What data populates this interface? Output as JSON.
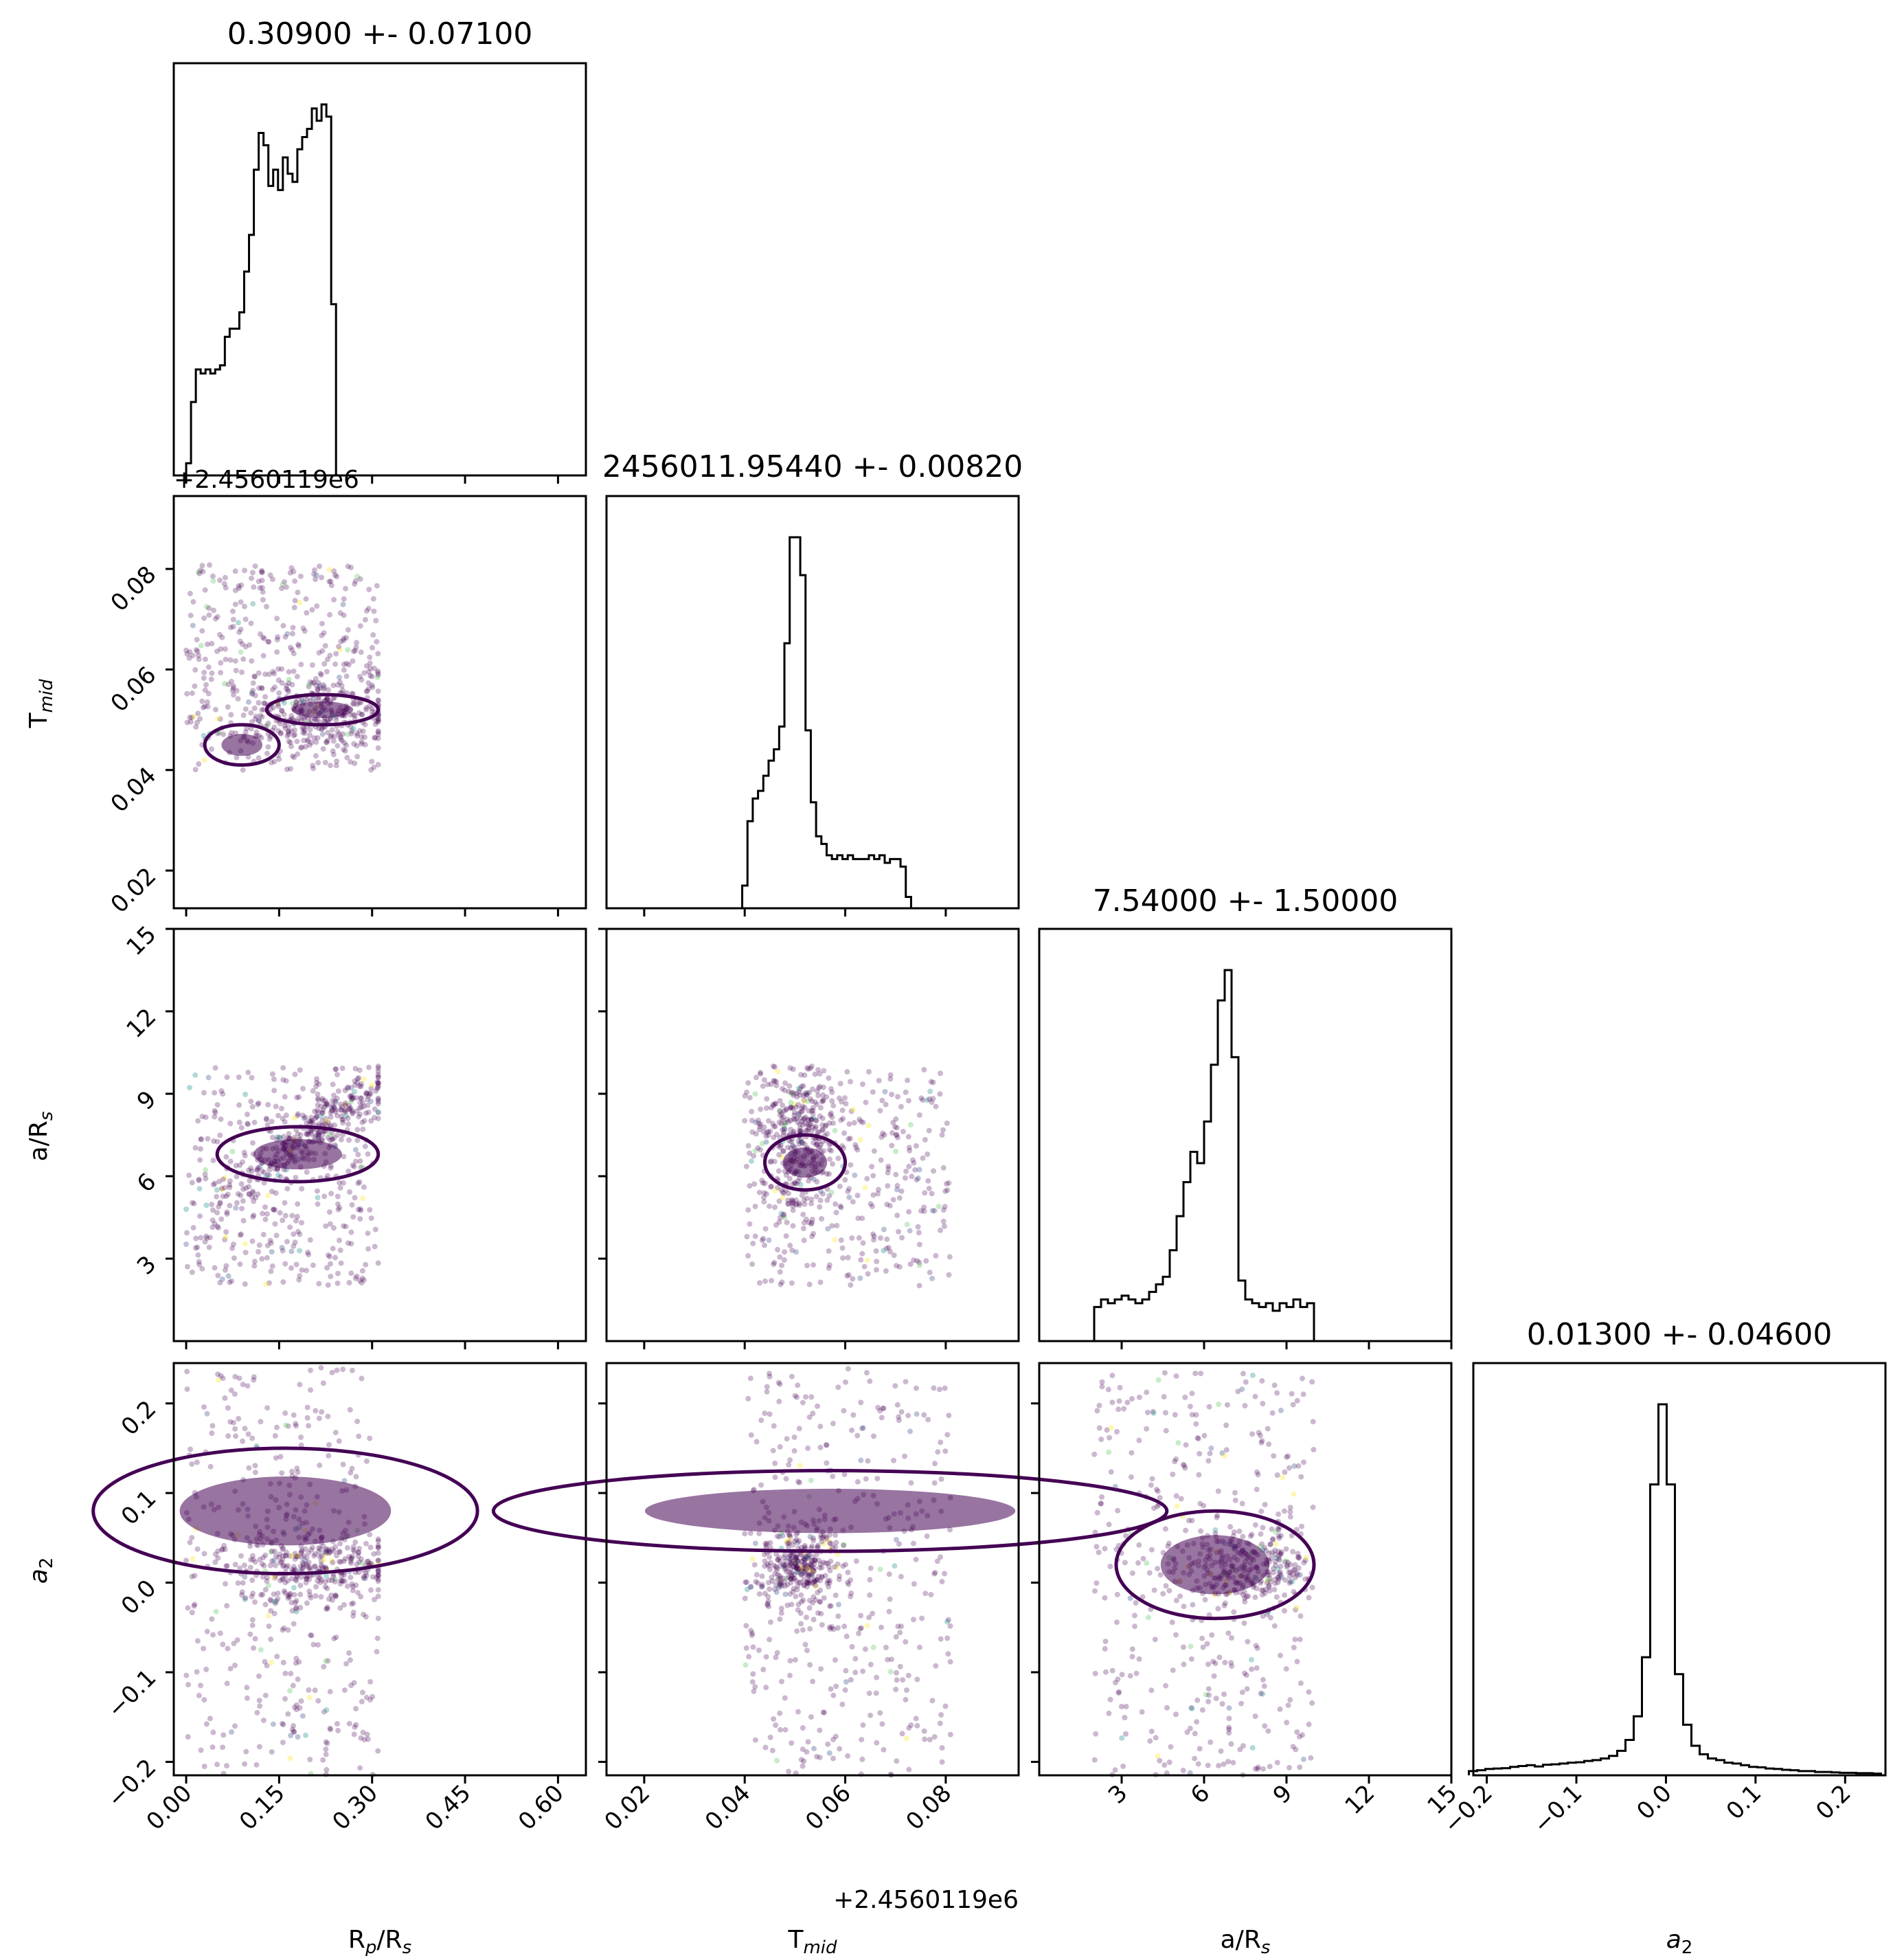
{
  "chart_data": {
    "type": "scatter",
    "parameters": [
      "R$_p$/R$_s$",
      "T$_{mid}$",
      "a/R$_s$",
      "$a_2$"
    ],
    "axis_labels": [
      {
        "base": "R",
        "sub": "p",
        "tail": "/R",
        "sub2": "s"
      },
      {
        "base": "T",
        "sub": "mid",
        "tail": "",
        "sub2": ""
      },
      {
        "base": "a/R",
        "sub": "s",
        "tail": "",
        "sub2": ""
      },
      {
        "base": "a",
        "sub": "2",
        "tail": "",
        "sub2": "",
        "italic": true
      }
    ],
    "titles": [
      "0.30900 +- 0.07100",
      "2456011.95440 +- 0.00820",
      "7.54000 +- 1.50000",
      "0.01300 +- 0.04600"
    ],
    "tmid_offset_label": "+2.4560119e6",
    "ranges": [
      [
        -0.02,
        0.645
      ],
      [
        0.0125,
        0.0945
      ],
      [
        0.0,
        15.0
      ],
      [
        -0.215,
        0.245
      ]
    ],
    "ticks": [
      [
        0.0,
        0.15,
        0.3,
        0.45,
        0.6
      ],
      [
        0.02,
        0.04,
        0.06,
        0.08
      ],
      [
        3,
        6,
        9,
        12,
        15
      ],
      [
        -0.2,
        -0.1,
        0.0,
        0.1,
        0.2
      ]
    ],
    "tick_labels": [
      [
        "0.00",
        "0.15",
        "0.30",
        "0.45",
        "0.60"
      ],
      [
        "0.02",
        "0.04",
        "0.06",
        "0.08"
      ],
      [
        "3",
        "6",
        "9",
        "12",
        "15"
      ],
      [
        "−0.2",
        "−0.1",
        "0.0",
        "0.1",
        "0.2"
      ]
    ],
    "prior_bounds": [
      [
        0.0,
        0.31
      ],
      [
        0.04,
        0.081
      ],
      [
        2.0,
        10.0
      ],
      [
        -0.22,
        0.24
      ]
    ],
    "histograms": [
      {
        "param": "R$_p$/R$_s$",
        "edges_start": 0.0,
        "bin_width": 0.0078,
        "values": [
          0.03,
          0.18,
          0.26,
          0.25,
          0.26,
          0.25,
          0.26,
          0.27,
          0.34,
          0.36,
          0.36,
          0.4,
          0.5,
          0.59,
          0.75,
          0.84,
          0.81,
          0.71,
          0.75,
          0.7,
          0.78,
          0.74,
          0.72,
          0.8,
          0.83,
          0.85,
          0.9,
          0.87,
          0.91,
          0.88,
          0.42,
          0.0
        ]
      },
      {
        "param": "T$_{mid}$",
        "edges_start": 0.0395,
        "bin_width": 0.00105,
        "values": [
          0.06,
          0.23,
          0.29,
          0.31,
          0.35,
          0.39,
          0.42,
          0.48,
          0.7,
          0.98,
          0.98,
          0.88,
          0.47,
          0.28,
          0.19,
          0.17,
          0.14,
          0.13,
          0.14,
          0.13,
          0.14,
          0.13,
          0.13,
          0.13,
          0.14,
          0.13,
          0.14,
          0.12,
          0.13,
          0.13,
          0.11,
          0.03
        ]
      },
      {
        "param": "a/R$_s$",
        "edges_start": 2.0,
        "bin_width": 0.25,
        "values": [
          0.09,
          0.11,
          0.1,
          0.11,
          0.12,
          0.11,
          0.1,
          0.11,
          0.13,
          0.15,
          0.17,
          0.24,
          0.33,
          0.42,
          0.5,
          0.47,
          0.58,
          0.73,
          0.9,
          0.98,
          0.75,
          0.16,
          0.11,
          0.1,
          0.09,
          0.1,
          0.08,
          0.1,
          0.09,
          0.11,
          0.09,
          0.1,
          0.0
        ]
      },
      {
        "param": "$a_2$",
        "edges_start": -0.22,
        "bin_width": 0.0092,
        "values": [
          0.01,
          0.012,
          0.015,
          0.016,
          0.017,
          0.02,
          0.022,
          0.024,
          0.021,
          0.025,
          0.026,
          0.028,
          0.03,
          0.031,
          0.034,
          0.036,
          0.04,
          0.046,
          0.058,
          0.084,
          0.14,
          0.28,
          0.69,
          0.88,
          0.69,
          0.24,
          0.12,
          0.07,
          0.05,
          0.04,
          0.036,
          0.03,
          0.028,
          0.024,
          0.02,
          0.019,
          0.016,
          0.015,
          0.013,
          0.012,
          0.01,
          0.01,
          0.008,
          0.008,
          0.007,
          0.006,
          0.006,
          0.005,
          0.005,
          0.004
        ]
      }
    ],
    "scatter_pairs": [
      {
        "x": "R$_p$/R$_s$",
        "y": "T$_{mid}$"
      },
      {
        "x": "R$_p$/R$_s$",
        "y": "a/R$_s$"
      },
      {
        "x": "T$_{mid}$",
        "y": "a/R$_s$"
      },
      {
        "x": "R$_p$/R$_s$",
        "y": "$a_2$"
      },
      {
        "x": "T$_{mid}$",
        "y": "$a_2$"
      },
      {
        "x": "a/R$_s$",
        "y": "$a_2$"
      }
    ],
    "colors": {
      "line": "#000000",
      "contour": "#440154",
      "scatter_main": "#440154",
      "scatter_extra": [
        "#3b528b",
        "#21918c",
        "#5ec962",
        "#fde725"
      ]
    }
  }
}
